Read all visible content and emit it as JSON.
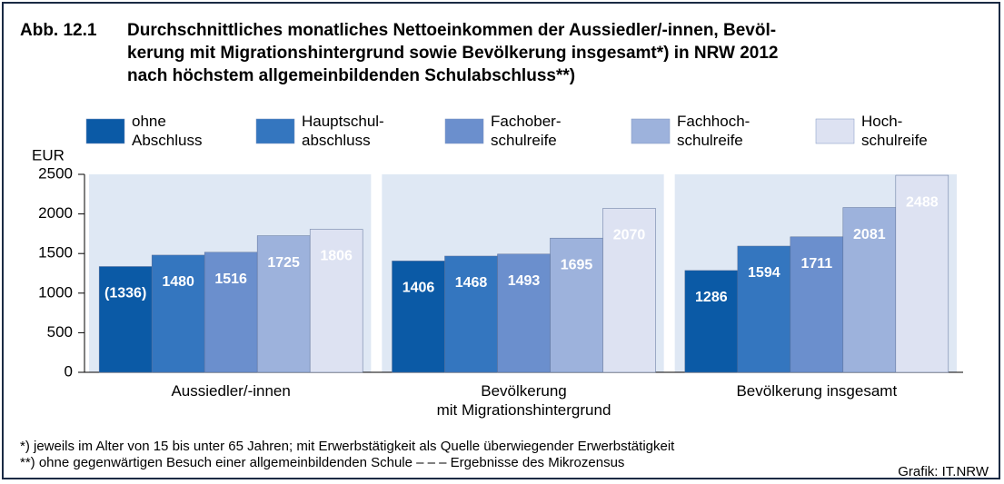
{
  "chart_data": {
    "type": "bar",
    "figure_label": "Abb. 12.1",
    "title": [
      "Durchschnittliches monatliches Nettoeinkommen der Aussiedler/-innen, Bevöl-",
      "kerung mit Migrationshintergrund sowie Bevölkerung insgesamt*) in NRW 2012",
      "nach höchstem allgemeinbildenden Schulabschluss**)"
    ],
    "y_label": "EUR",
    "categories": [
      "Aussiedler/-innen",
      "Bevölkerung\nmit Migrationshintergrund",
      "Bevölkerung insgesamt"
    ],
    "series": [
      {
        "name": "ohne\nAbschluss",
        "color": "#0b5aa6",
        "values": [
          1336,
          1406,
          1286
        ],
        "value_labels": [
          "(1336)",
          "1406",
          "1286"
        ]
      },
      {
        "name": "Hauptschul-\nabschluss",
        "color": "#3476bf",
        "values": [
          1480,
          1468,
          1594
        ]
      },
      {
        "name": "Fachober-\nschulreife",
        "color": "#6b8fcd",
        "values": [
          1516,
          1493,
          1711
        ]
      },
      {
        "name": "Fachhoch-\nschulreife",
        "color": "#9db2dc",
        "values": [
          1725,
          1695,
          2081
        ]
      },
      {
        "name": "Hoch-\nschulreife",
        "color": "#dde2f2",
        "values": [
          1806,
          2070,
          2488
        ]
      }
    ],
    "ylim": [
      0,
      2500
    ],
    "yticks": [
      0,
      500,
      1000,
      1500,
      2000,
      2500
    ],
    "footnotes": [
      "*) jeweils im Alter von 15 bis unter 65 Jahren; mit Erwerbstätigkeit als Quelle überwiegender Erwerbstätigkeit",
      "**) ohne gegenwärtigen Besuch einer allgemeinbildenden Schule – – – Ergebnisse des Mikrozensus"
    ],
    "source": "Grafik: IT.NRW"
  }
}
